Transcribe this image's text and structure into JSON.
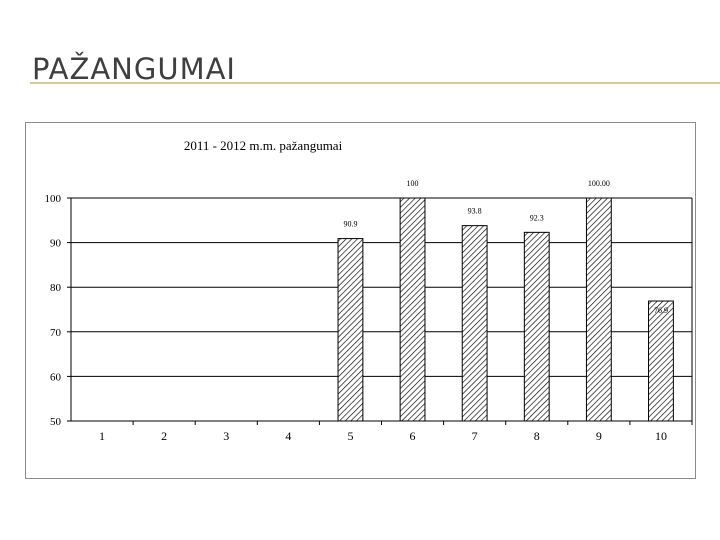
{
  "slide": {
    "title": "PAŽANGUMAI"
  },
  "chart_data": {
    "type": "bar",
    "title": "2011 - 2012 m.m. pažangumai",
    "xlabel": "",
    "ylabel": "",
    "categories": [
      "1",
      "2",
      "3",
      "4",
      "5",
      "6",
      "7",
      "8",
      "9",
      "10"
    ],
    "values": [
      null,
      null,
      null,
      null,
      90.9,
      100,
      93.8,
      92.3,
      100,
      76.9
    ],
    "data_labels": [
      "",
      "",
      "",
      "",
      "90.9",
      "100",
      "93.8",
      "92.3",
      "100.00",
      "76.9"
    ],
    "ylim": [
      50,
      100
    ],
    "yticks": [
      50,
      60,
      70,
      80,
      90,
      100
    ],
    "grid": true,
    "legend": "none",
    "bar_fill": "diagonal hatch"
  }
}
